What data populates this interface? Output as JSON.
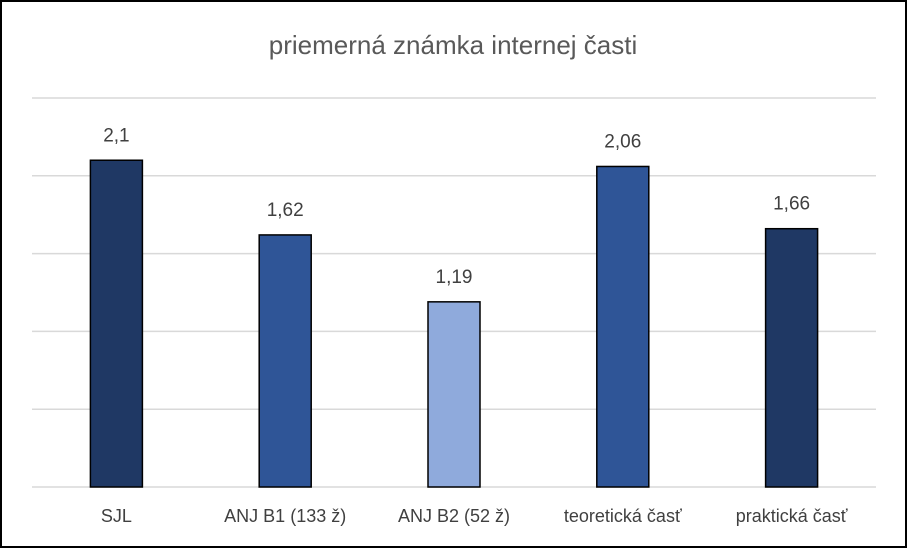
{
  "chart_data": {
    "type": "bar",
    "title": "priemerná známka internej časti",
    "categories": [
      "SJL",
      "ANJ B1 (133 ž)",
      "ANJ B2 (52 ž)",
      "teoretická časť",
      "praktická časť"
    ],
    "values": [
      2.1,
      1.62,
      1.19,
      2.06,
      1.66
    ],
    "value_labels": [
      "2,1",
      "1,62",
      "1,19",
      "2,06",
      "1,66"
    ],
    "colors": [
      "#1f3864",
      "#2f5597",
      "#8faadc",
      "#2f5597",
      "#1f3864"
    ],
    "ylim": [
      0,
      2.5
    ],
    "yticks": [
      0,
      0.5,
      1,
      1.5,
      2,
      2.5
    ],
    "grid": true
  }
}
